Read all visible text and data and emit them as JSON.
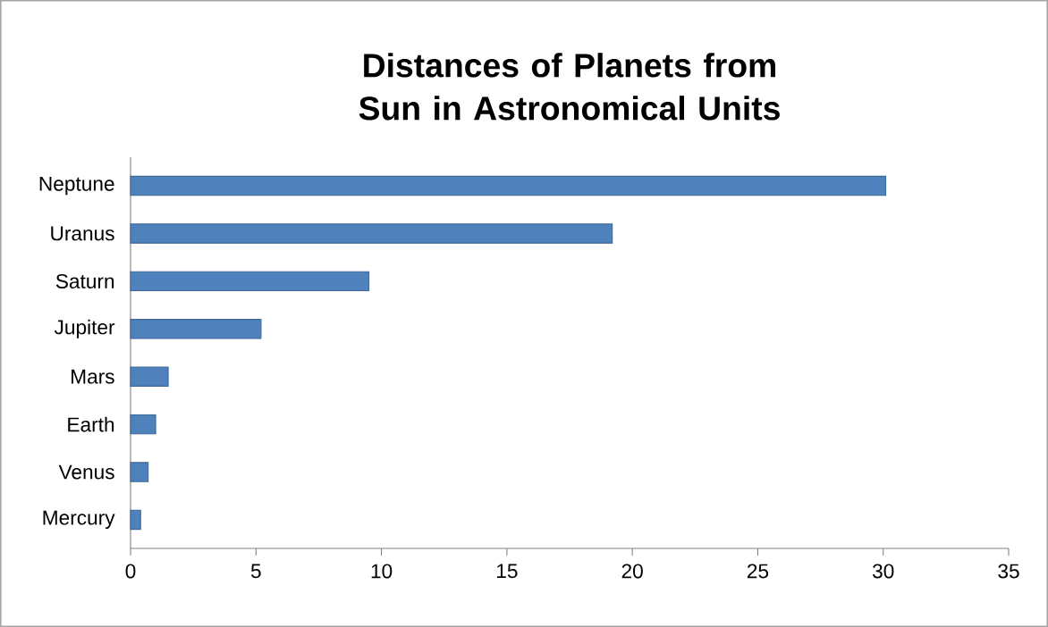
{
  "chart_data": {
    "type": "bar",
    "orientation": "horizontal",
    "title": "Distances of Planets from Sun in Astronomical Units",
    "categories": [
      "Neptune",
      "Uranus",
      "Saturn",
      "Jupiter",
      "Mars",
      "Earth",
      "Venus",
      "Mercury"
    ],
    "values": [
      30.1,
      19.2,
      9.5,
      5.2,
      1.5,
      1.0,
      0.7,
      0.4
    ],
    "color": "#4f81bd",
    "xlim": [
      0,
      35
    ],
    "xticks": [
      0,
      5,
      10,
      15,
      20,
      25,
      30,
      35
    ]
  }
}
